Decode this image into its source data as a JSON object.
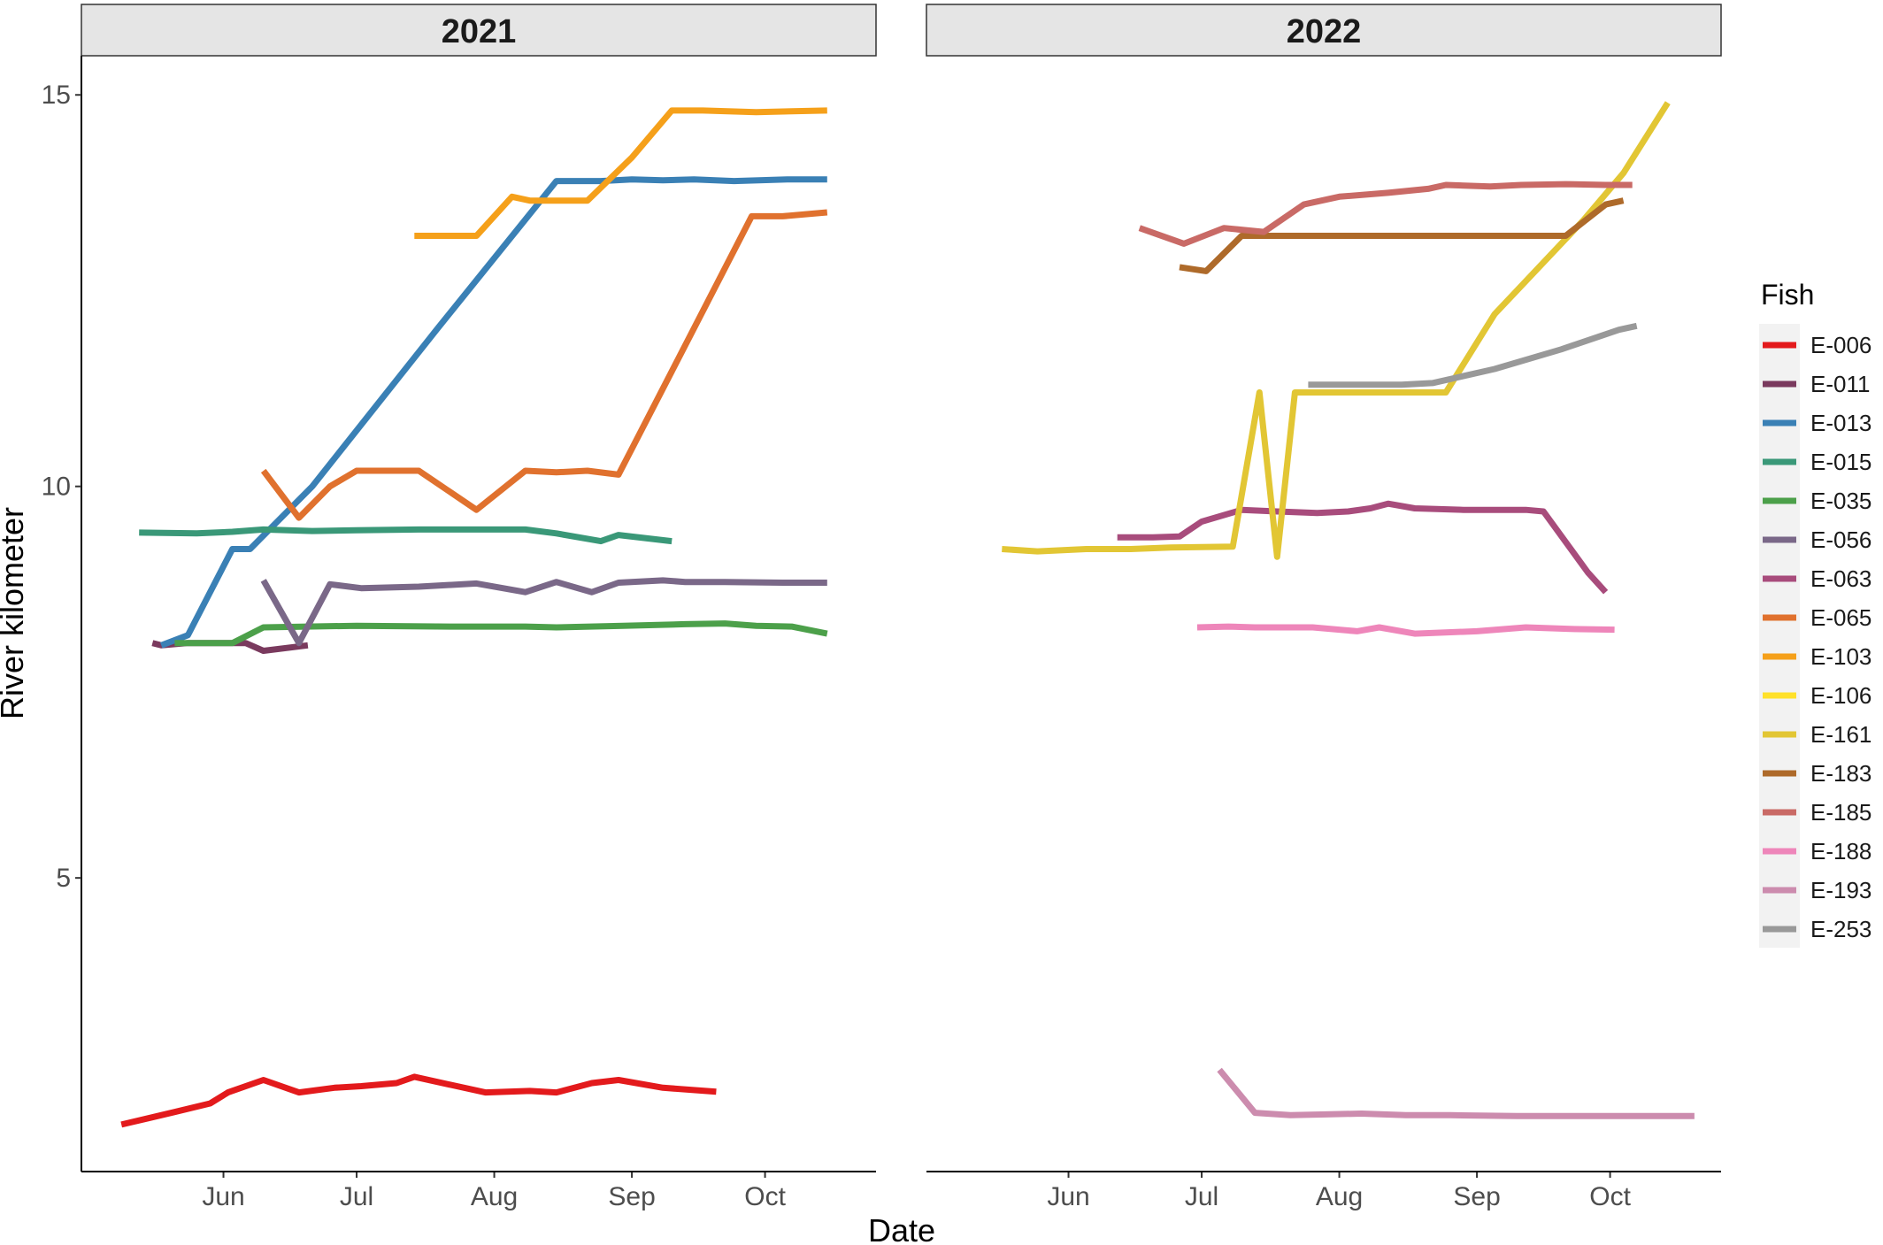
{
  "chart_data": {
    "type": "line",
    "xlabel": "Date",
    "ylabel": "River kilometer",
    "ylim": [
      1.25,
      15.5
    ],
    "yticks": [
      5,
      10,
      15
    ],
    "xticks": [
      "Jun",
      "Jul",
      "Aug",
      "Sep",
      "Oct"
    ],
    "legend": {
      "title": "Fish",
      "position": "right"
    },
    "grid": false,
    "colors": {
      "E-006": "#E31A1C",
      "E-011": "#7A3A5E",
      "E-013": "#3A80B5",
      "E-015": "#3A9878",
      "E-035": "#4CA04A",
      "E-056": "#7A6888",
      "E-063": "#A84C7C",
      "E-065": "#E0712E",
      "E-103": "#F5A01A",
      "E-106": "#FFE12A",
      "E-161": "#E2C634",
      "E-183": "#AE6A2A",
      "E-185": "#C96A66",
      "E-188": "#EE86BA",
      "E-193": "#CC8CAE",
      "E-253": "#999999"
    },
    "series_order": [
      "E-006",
      "E-011",
      "E-013",
      "E-015",
      "E-035",
      "E-056",
      "E-063",
      "E-065",
      "E-103",
      "E-106",
      "E-161",
      "E-183",
      "E-185",
      "E-188",
      "E-193",
      "E-253"
    ],
    "panels": [
      {
        "title": "2021",
        "series": [
          {
            "name": "E-006",
            "points": [
              [
                "2021-05-09",
                1.85
              ],
              [
                "2021-05-15",
                1.93
              ],
              [
                "2021-05-21",
                2.01
              ],
              [
                "2021-05-29",
                2.12
              ],
              [
                "2021-06-02",
                2.26
              ],
              [
                "2021-06-10",
                2.42
              ],
              [
                "2021-06-18",
                2.26
              ],
              [
                "2021-06-26",
                2.32
              ],
              [
                "2021-07-02",
                2.34
              ],
              [
                "2021-07-10",
                2.38
              ],
              [
                "2021-07-14",
                2.46
              ],
              [
                "2021-07-22",
                2.36
              ],
              [
                "2021-07-30",
                2.26
              ],
              [
                "2021-08-09",
                2.28
              ],
              [
                "2021-08-15",
                2.26
              ],
              [
                "2021-08-23",
                2.38
              ],
              [
                "2021-08-29",
                2.42
              ],
              [
                "2021-09-08",
                2.32
              ],
              [
                "2021-09-20",
                2.27
              ]
            ]
          },
          {
            "name": "E-011",
            "points": [
              [
                "2021-05-16",
                8.0
              ],
              [
                "2021-05-18",
                7.97
              ],
              [
                "2021-05-24",
                8.0
              ],
              [
                "2021-06-06",
                8.0
              ],
              [
                "2021-06-10",
                7.9
              ],
              [
                "2021-06-20",
                7.97
              ]
            ]
          },
          {
            "name": "E-013",
            "points": [
              [
                "2021-05-18",
                7.97
              ],
              [
                "2021-05-24",
                8.1
              ],
              [
                "2021-06-03",
                9.2
              ],
              [
                "2021-06-07",
                9.2
              ],
              [
                "2021-06-21",
                10.0
              ],
              [
                "2021-07-19",
                12.0
              ],
              [
                "2021-08-15",
                13.9
              ],
              [
                "2021-08-25",
                13.9
              ],
              [
                "2021-09-01",
                13.92
              ],
              [
                "2021-09-08",
                13.91
              ],
              [
                "2021-09-15",
                13.92
              ],
              [
                "2021-09-24",
                13.9
              ],
              [
                "2021-10-06",
                13.92
              ],
              [
                "2021-10-15",
                13.92
              ]
            ]
          },
          {
            "name": "E-015",
            "points": [
              [
                "2021-05-13",
                9.41
              ],
              [
                "2021-05-26",
                9.4
              ],
              [
                "2021-06-03",
                9.42
              ],
              [
                "2021-06-10",
                9.45
              ],
              [
                "2021-06-21",
                9.43
              ],
              [
                "2021-07-01",
                9.44
              ],
              [
                "2021-07-15",
                9.45
              ],
              [
                "2021-08-08",
                9.45
              ],
              [
                "2021-08-15",
                9.4
              ],
              [
                "2021-08-25",
                9.3
              ],
              [
                "2021-08-29",
                9.38
              ],
              [
                "2021-09-10",
                9.3
              ]
            ]
          },
          {
            "name": "E-035",
            "points": [
              [
                "2021-05-21",
                8.0
              ],
              [
                "2021-06-03",
                8.0
              ],
              [
                "2021-06-10",
                8.2
              ],
              [
                "2021-07-01",
                8.22
              ],
              [
                "2021-07-22",
                8.21
              ],
              [
                "2021-08-08",
                8.21
              ],
              [
                "2021-08-15",
                8.2
              ],
              [
                "2021-08-30",
                8.22
              ],
              [
                "2021-09-13",
                8.24
              ],
              [
                "2021-09-22",
                8.25
              ],
              [
                "2021-09-29",
                8.22
              ],
              [
                "2021-10-07",
                8.21
              ],
              [
                "2021-10-15",
                8.12
              ]
            ]
          },
          {
            "name": "E-056",
            "points": [
              [
                "2021-06-10",
                8.8
              ],
              [
                "2021-06-18",
                8.0
              ],
              [
                "2021-06-25",
                8.75
              ],
              [
                "2021-07-02",
                8.7
              ],
              [
                "2021-07-15",
                8.72
              ],
              [
                "2021-07-28",
                8.76
              ],
              [
                "2021-08-08",
                8.65
              ],
              [
                "2021-08-15",
                8.78
              ],
              [
                "2021-08-23",
                8.65
              ],
              [
                "2021-08-29",
                8.77
              ],
              [
                "2021-09-08",
                8.8
              ],
              [
                "2021-09-13",
                8.78
              ],
              [
                "2021-09-22",
                8.78
              ],
              [
                "2021-10-05",
                8.77
              ],
              [
                "2021-10-15",
                8.77
              ]
            ]
          },
          {
            "name": "E-065",
            "points": [
              [
                "2021-06-10",
                10.2
              ],
              [
                "2021-06-18",
                9.6
              ],
              [
                "2021-06-25",
                10.0
              ],
              [
                "2021-07-01",
                10.2
              ],
              [
                "2021-07-15",
                10.2
              ],
              [
                "2021-07-28",
                9.7
              ],
              [
                "2021-08-08",
                10.2
              ],
              [
                "2021-08-15",
                10.18
              ],
              [
                "2021-08-22",
                10.2
              ],
              [
                "2021-08-29",
                10.15
              ],
              [
                "2021-09-13",
                11.8
              ],
              [
                "2021-09-28",
                13.45
              ],
              [
                "2021-10-05",
                13.45
              ],
              [
                "2021-10-15",
                13.5
              ]
            ]
          },
          {
            "name": "E-103",
            "points": [
              [
                "2021-07-14",
                13.2
              ],
              [
                "2021-07-28",
                13.2
              ],
              [
                "2021-08-05",
                13.7
              ],
              [
                "2021-08-09",
                13.65
              ],
              [
                "2021-08-22",
                13.65
              ],
              [
                "2021-09-01",
                14.2
              ],
              [
                "2021-09-10",
                14.8
              ],
              [
                "2021-09-17",
                14.8
              ],
              [
                "2021-09-29",
                14.78
              ],
              [
                "2021-10-15",
                14.8
              ]
            ]
          }
        ]
      },
      {
        "title": "2022",
        "series": [
          {
            "name": "E-063",
            "points": [
              [
                "2022-06-12",
                9.35
              ],
              [
                "2022-06-20",
                9.35
              ],
              [
                "2022-06-26",
                9.36
              ],
              [
                "2022-07-01",
                9.55
              ],
              [
                "2022-07-10",
                9.7
              ],
              [
                "2022-07-18",
                9.68
              ],
              [
                "2022-07-27",
                9.66
              ],
              [
                "2022-08-03",
                9.68
              ],
              [
                "2022-08-08",
                9.72
              ],
              [
                "2022-08-12",
                9.78
              ],
              [
                "2022-08-18",
                9.72
              ],
              [
                "2022-08-29",
                9.7
              ],
              [
                "2022-09-12",
                9.7
              ],
              [
                "2022-09-16",
                9.68
              ],
              [
                "2022-09-26",
                8.9
              ],
              [
                "2022-09-30",
                8.65
              ]
            ]
          },
          {
            "name": "E-161",
            "points": [
              [
                "2022-05-17",
                9.2
              ],
              [
                "2022-05-25",
                9.17
              ],
              [
                "2022-06-05",
                9.2
              ],
              [
                "2022-06-15",
                9.2
              ],
              [
                "2022-06-24",
                9.22
              ],
              [
                "2022-07-08",
                9.23
              ],
              [
                "2022-07-14",
                11.2
              ],
              [
                "2022-07-18",
                9.1
              ],
              [
                "2022-07-22",
                11.2
              ],
              [
                "2022-08-15",
                11.2
              ],
              [
                "2022-08-22",
                11.2
              ],
              [
                "2022-08-25",
                11.2
              ],
              [
                "2022-09-05",
                12.2
              ],
              [
                "2022-09-25",
                13.4
              ],
              [
                "2022-10-04",
                14.0
              ],
              [
                "2022-10-14",
                14.9
              ]
            ]
          },
          {
            "name": "E-183",
            "points": [
              [
                "2022-06-26",
                12.8
              ],
              [
                "2022-07-02",
                12.75
              ],
              [
                "2022-07-10",
                13.2
              ],
              [
                "2022-07-20",
                13.2
              ],
              [
                "2022-08-01",
                13.2
              ],
              [
                "2022-08-11",
                13.2
              ],
              [
                "2022-08-28",
                13.2
              ],
              [
                "2022-09-10",
                13.2
              ],
              [
                "2022-09-21",
                13.2
              ],
              [
                "2022-09-30",
                13.6
              ],
              [
                "2022-10-04",
                13.65
              ]
            ]
          },
          {
            "name": "E-185",
            "points": [
              [
                "2022-06-17",
                13.3
              ],
              [
                "2022-06-27",
                13.1
              ],
              [
                "2022-07-06",
                13.3
              ],
              [
                "2022-07-15",
                13.25
              ],
              [
                "2022-07-24",
                13.6
              ],
              [
                "2022-08-01",
                13.7
              ],
              [
                "2022-08-12",
                13.75
              ],
              [
                "2022-08-21",
                13.8
              ],
              [
                "2022-08-25",
                13.85
              ],
              [
                "2022-09-04",
                13.83
              ],
              [
                "2022-09-11",
                13.85
              ],
              [
                "2022-09-21",
                13.86
              ],
              [
                "2022-09-30",
                13.85
              ],
              [
                "2022-10-06",
                13.85
              ]
            ]
          },
          {
            "name": "E-188",
            "points": [
              [
                "2022-06-30",
                8.2
              ],
              [
                "2022-07-07",
                8.21
              ],
              [
                "2022-07-13",
                8.2
              ],
              [
                "2022-07-26",
                8.2
              ],
              [
                "2022-08-05",
                8.15
              ],
              [
                "2022-08-10",
                8.2
              ],
              [
                "2022-08-18",
                8.12
              ],
              [
                "2022-09-01",
                8.15
              ],
              [
                "2022-09-12",
                8.2
              ],
              [
                "2022-09-22",
                8.18
              ],
              [
                "2022-10-02",
                8.17
              ]
            ]
          },
          {
            "name": "E-193",
            "points": [
              [
                "2022-07-05",
                2.55
              ],
              [
                "2022-07-13",
                2.0
              ],
              [
                "2022-07-21",
                1.97
              ],
              [
                "2022-07-29",
                1.98
              ],
              [
                "2022-08-06",
                1.99
              ],
              [
                "2022-08-16",
                1.97
              ],
              [
                "2022-08-26",
                1.97
              ],
              [
                "2022-09-10",
                1.96
              ],
              [
                "2022-09-20",
                1.96
              ],
              [
                "2022-10-05",
                1.96
              ],
              [
                "2022-10-20",
                1.96
              ]
            ]
          },
          {
            "name": "E-253",
            "points": [
              [
                "2022-07-25",
                11.3
              ],
              [
                "2022-08-04",
                11.3
              ],
              [
                "2022-08-15",
                11.3
              ],
              [
                "2022-08-22",
                11.32
              ],
              [
                "2022-09-05",
                11.5
              ],
              [
                "2022-09-20",
                11.75
              ],
              [
                "2022-10-03",
                12.0
              ],
              [
                "2022-10-07",
                12.05
              ]
            ]
          }
        ]
      }
    ]
  }
}
